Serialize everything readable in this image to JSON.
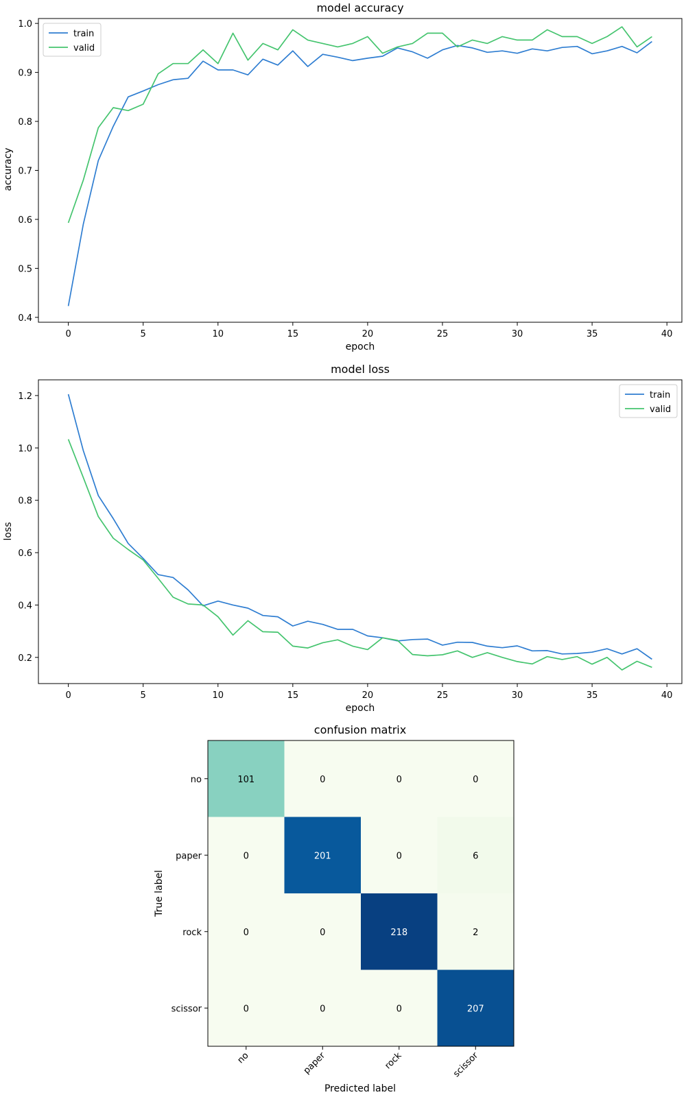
{
  "chart_data": [
    {
      "type": "line",
      "title": "model accuracy",
      "xlabel": "epoch",
      "ylabel": "accuracy",
      "xlim": [
        -2,
        41
      ],
      "ylim": [
        0.39,
        1.01
      ],
      "xticks": [
        0,
        5,
        10,
        15,
        20,
        25,
        30,
        35,
        40
      ],
      "yticks": [
        0.4,
        0.5,
        0.6,
        0.7,
        0.8,
        0.9,
        1.0
      ],
      "legend": "top-left",
      "x": [
        0,
        1,
        2,
        3,
        4,
        5,
        6,
        7,
        8,
        9,
        10,
        11,
        12,
        13,
        14,
        15,
        16,
        17,
        18,
        19,
        20,
        21,
        22,
        23,
        24,
        25,
        26,
        27,
        28,
        29,
        30,
        31,
        32,
        33,
        34,
        35,
        36,
        37,
        38,
        39
      ],
      "series": [
        {
          "name": "train",
          "color": "#2e7dd1",
          "values": [
            0.423,
            0.59,
            0.72,
            0.79,
            0.85,
            0.862,
            0.875,
            0.885,
            0.888,
            0.923,
            0.905,
            0.905,
            0.895,
            0.927,
            0.915,
            0.944,
            0.912,
            0.937,
            0.931,
            0.924,
            0.929,
            0.933,
            0.95,
            0.942,
            0.929,
            0.946,
            0.955,
            0.95,
            0.941,
            0.944,
            0.939,
            0.948,
            0.944,
            0.951,
            0.953,
            0.938,
            0.944,
            0.953,
            0.94,
            0.963
          ]
        },
        {
          "name": "valid",
          "color": "#44c46e",
          "values": [
            0.593,
            0.68,
            0.787,
            0.828,
            0.822,
            0.835,
            0.897,
            0.918,
            0.918,
            0.946,
            0.918,
            0.98,
            0.925,
            0.959,
            0.946,
            0.987,
            0.966,
            0.959,
            0.952,
            0.959,
            0.973,
            0.939,
            0.952,
            0.959,
            0.98,
            0.98,
            0.952,
            0.966,
            0.959,
            0.973,
            0.966,
            0.966,
            0.987,
            0.973,
            0.973,
            0.959,
            0.973,
            0.993,
            0.952,
            0.973
          ]
        }
      ]
    },
    {
      "type": "line",
      "title": "model loss",
      "xlabel": "epoch",
      "ylabel": "loss",
      "xlim": [
        -2,
        41
      ],
      "ylim": [
        0.1,
        1.26
      ],
      "xticks": [
        0,
        5,
        10,
        15,
        20,
        25,
        30,
        35,
        40
      ],
      "yticks": [
        0.2,
        0.4,
        0.6,
        0.8,
        1.0,
        1.2
      ],
      "legend": "top-right",
      "x": [
        0,
        1,
        2,
        3,
        4,
        5,
        6,
        7,
        8,
        9,
        10,
        11,
        12,
        13,
        14,
        15,
        16,
        17,
        18,
        19,
        20,
        21,
        22,
        23,
        24,
        25,
        26,
        27,
        28,
        29,
        30,
        31,
        32,
        33,
        34,
        35,
        36,
        37,
        38,
        39
      ],
      "series": [
        {
          "name": "train",
          "color": "#2e7dd1",
          "values": [
            1.205,
            0.99,
            0.818,
            0.73,
            0.635,
            0.578,
            0.516,
            0.505,
            0.458,
            0.397,
            0.415,
            0.4,
            0.388,
            0.36,
            0.355,
            0.32,
            0.338,
            0.326,
            0.307,
            0.307,
            0.282,
            0.275,
            0.263,
            0.268,
            0.27,
            0.247,
            0.258,
            0.257,
            0.243,
            0.237,
            0.244,
            0.225,
            0.226,
            0.213,
            0.215,
            0.22,
            0.233,
            0.213,
            0.233,
            0.193
          ]
        },
        {
          "name": "valid",
          "color": "#44c46e",
          "values": [
            1.033,
            0.887,
            0.738,
            0.655,
            0.612,
            0.572,
            0.502,
            0.43,
            0.404,
            0.4,
            0.355,
            0.285,
            0.34,
            0.298,
            0.296,
            0.243,
            0.236,
            0.256,
            0.267,
            0.243,
            0.23,
            0.275,
            0.265,
            0.211,
            0.206,
            0.21,
            0.225,
            0.2,
            0.218,
            0.2,
            0.184,
            0.175,
            0.203,
            0.192,
            0.203,
            0.174,
            0.2,
            0.152,
            0.185,
            0.162
          ]
        }
      ]
    },
    {
      "type": "heatmap",
      "title": "confusion matrix",
      "xlabel": "Predicted label",
      "ylabel": "True label",
      "x_categories": [
        "no",
        "paper",
        "rock",
        "scissor"
      ],
      "y_categories": [
        "no",
        "paper",
        "rock",
        "scissor"
      ],
      "values": [
        [
          101,
          0,
          0,
          0
        ],
        [
          0,
          201,
          0,
          6
        ],
        [
          0,
          0,
          218,
          2
        ],
        [
          0,
          0,
          0,
          207
        ]
      ],
      "colormap": "GnBu",
      "vmin": 0,
      "vmax": 218
    }
  ]
}
